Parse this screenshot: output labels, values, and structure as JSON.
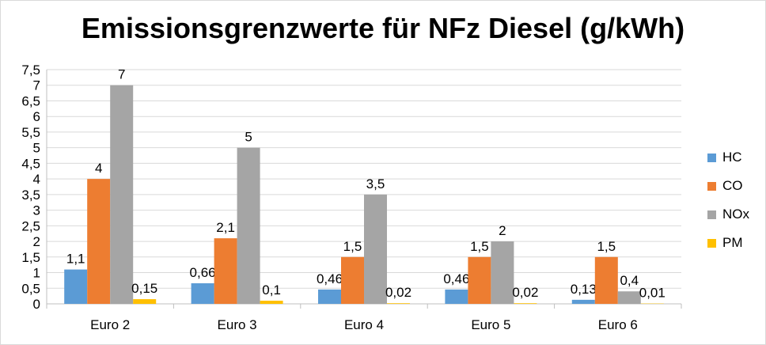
{
  "chart_data": {
    "type": "bar",
    "title": "Emissionsgrenzwerte für NFz Diesel (g/kWh)",
    "categories": [
      "Euro 2",
      "Euro 3",
      "Euro 4",
      "Euro 5",
      "Euro 6"
    ],
    "series": [
      {
        "name": "HC",
        "color": "#5b9bd5",
        "values": [
          1.1,
          0.66,
          0.46,
          0.46,
          0.13
        ],
        "labels": [
          "1,1",
          "0,66",
          "0,46",
          "0,46",
          "0,13"
        ]
      },
      {
        "name": "CO",
        "color": "#ed7d31",
        "values": [
          4,
          2.1,
          1.5,
          1.5,
          1.5
        ],
        "labels": [
          "4",
          "2,1",
          "1,5",
          "1,5",
          "1,5"
        ]
      },
      {
        "name": "NOx",
        "color": "#a5a5a5",
        "values": [
          7,
          5,
          3.5,
          2,
          0.4
        ],
        "labels": [
          "7",
          "5",
          "3,5",
          "2",
          "0,4"
        ]
      },
      {
        "name": "PM",
        "color": "#ffc000",
        "values": [
          0.15,
          0.1,
          0.02,
          0.02,
          0.01
        ],
        "labels": [
          "0,15",
          "0,1",
          "0,02",
          "0,02",
          "0,01"
        ]
      }
    ],
    "ylim": [
      0,
      7.5
    ],
    "yticks": [
      "0",
      "0,5",
      "1",
      "1,5",
      "2",
      "2,5",
      "3",
      "3,5",
      "4",
      "4,5",
      "5",
      "5,5",
      "6",
      "6,5",
      "7",
      "7,5"
    ],
    "grid": true,
    "legend_position": "right",
    "xlabel": "",
    "ylabel": ""
  }
}
